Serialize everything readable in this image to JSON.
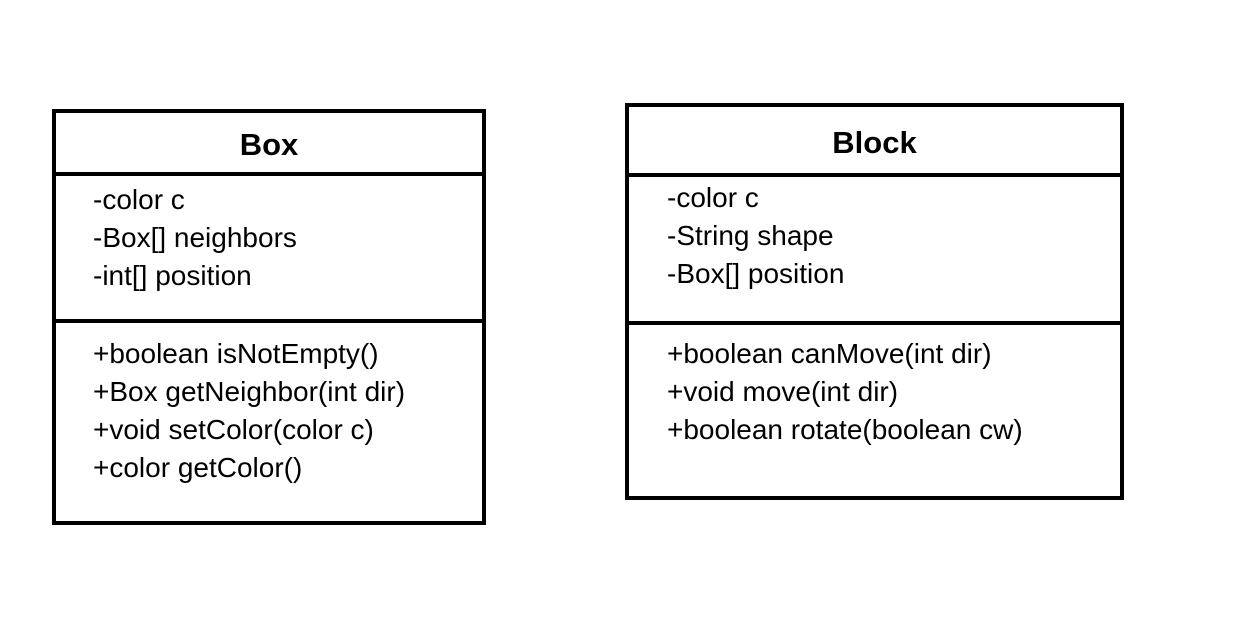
{
  "classes": [
    {
      "name": "Box",
      "attributes": [
        "-color c",
        "-Box[] neighbors",
        "-int[] position"
      ],
      "methods": [
        "+boolean isNotEmpty()",
        "+Box getNeighbor(int dir)",
        "+void setColor(color c)",
        "+color getColor()"
      ]
    },
    {
      "name": "Block",
      "attributes": [
        "-color c",
        "-String shape",
        "-Box[] position"
      ],
      "methods": [
        "+boolean canMove(int dir)",
        "+void move(int dir)",
        "+boolean rotate(boolean cw)"
      ]
    }
  ]
}
